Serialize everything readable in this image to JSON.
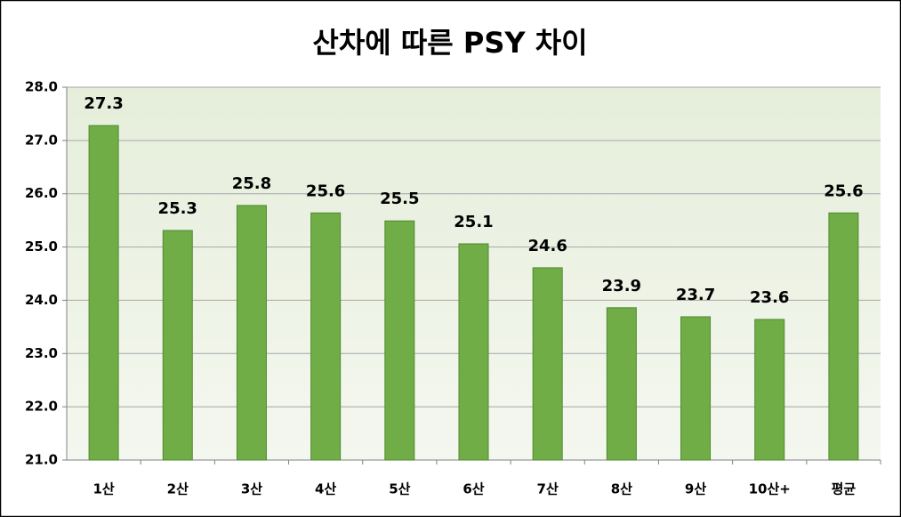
{
  "chart_data": {
    "type": "bar",
    "title": "산차에 따른 PSY 차이",
    "categories": [
      "1산",
      "2산",
      "3산",
      "4산",
      "5산",
      "6산",
      "7산",
      "8산",
      "9산",
      "10산+",
      "평균"
    ],
    "values": [
      27.28,
      25.31,
      25.78,
      25.64,
      25.49,
      25.06,
      24.61,
      23.86,
      23.69,
      23.64,
      25.64
    ],
    "value_labels": [
      "27.3",
      "25.3",
      "25.8",
      "25.6",
      "25.5",
      "25.1",
      "24.6",
      "23.9",
      "23.7",
      "23.6",
      "25.6"
    ],
    "color": "#70ad47",
    "ylim": [
      21,
      28
    ],
    "yticks": [
      {
        "value": 21,
        "label": "21.0"
      },
      {
        "value": 22,
        "label": "22.0"
      },
      {
        "value": 23,
        "label": "23.0"
      },
      {
        "value": 24,
        "label": "24.0"
      },
      {
        "value": 25,
        "label": "25.0"
      },
      {
        "value": 26,
        "label": "26.0"
      },
      {
        "value": 27,
        "label": "27.0"
      },
      {
        "value": 28,
        "label": "28.0"
      }
    ],
    "grid": true
  }
}
